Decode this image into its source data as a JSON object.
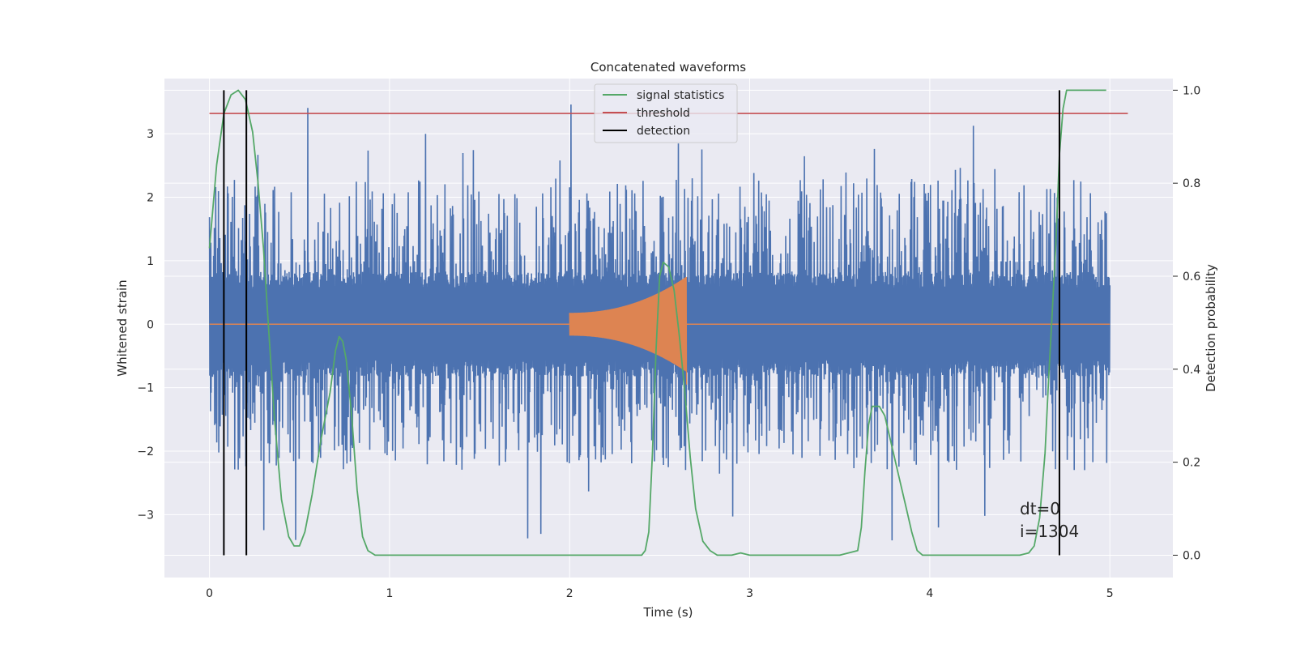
{
  "chart_data": {
    "type": "line",
    "title": "Concatenated waveforms",
    "xlabel": "Time (s)",
    "ylabel": "Whitened strain",
    "ylabel_right": "Detection probability",
    "xlim": [
      -0.25,
      5.35
    ],
    "ylim": [
      -3.99,
      3.87
    ],
    "ylim_right": [
      -0.048,
      1.025
    ],
    "x_ticks": [
      0,
      1,
      2,
      3,
      4,
      5
    ],
    "y_ticks": [
      -3,
      -2,
      -1,
      0,
      1,
      2,
      3
    ],
    "y_ticks_right": [
      0.0,
      0.2,
      0.4,
      0.6,
      0.8,
      1.0
    ],
    "grid": true,
    "legend_position": "top-center",
    "legend": [
      {
        "name": "signal statistics",
        "color": "#55a868"
      },
      {
        "name": "threshold",
        "color": "#c44e52"
      },
      {
        "name": "detection",
        "color": "#000000"
      }
    ],
    "colors": {
      "noise": "#4c72b0",
      "injection": "#dd8452",
      "signal_statistics": "#55a868",
      "threshold": "#c44e52",
      "detection": "#000000",
      "axes_bg": "#eaeaf2",
      "grid": "#ffffff"
    },
    "noise": {
      "x_range": [
        0,
        5
      ],
      "band": 0.75,
      "typical_peak": 2.3,
      "max_peak": 3.55,
      "min_trough": -3.6
    },
    "injection": {
      "x_start": 2.0,
      "x_end": 2.65,
      "start_amplitude": 0.18,
      "peak_amplitude": 0.75,
      "end_amplitude": -0.95
    },
    "signal_statistics": {
      "x": [
        0.0,
        0.04,
        0.08,
        0.12,
        0.16,
        0.2,
        0.24,
        0.27,
        0.3,
        0.33,
        0.36,
        0.4,
        0.44,
        0.47,
        0.5,
        0.53,
        0.57,
        0.62,
        0.67,
        0.7,
        0.72,
        0.74,
        0.76,
        0.79,
        0.82,
        0.85,
        0.88,
        0.92,
        1.0,
        1.5,
        2.0,
        2.4,
        2.42,
        2.44,
        2.46,
        2.48,
        2.5,
        2.52,
        2.55,
        2.58,
        2.61,
        2.64,
        2.67,
        2.7,
        2.74,
        2.78,
        2.82,
        2.9,
        2.95,
        3.0,
        3.1,
        3.5,
        3.6,
        3.62,
        3.64,
        3.66,
        3.68,
        3.7,
        3.72,
        3.75,
        3.78,
        3.81,
        3.84,
        3.87,
        3.9,
        3.93,
        3.96,
        4.0,
        4.4,
        4.5,
        4.55,
        4.58,
        4.61,
        4.64,
        4.66,
        4.68,
        4.7,
        4.72,
        4.74,
        4.76,
        4.8,
        4.9,
        4.98
      ],
      "y": [
        0.66,
        0.84,
        0.95,
        0.99,
        1.0,
        0.98,
        0.91,
        0.8,
        0.66,
        0.48,
        0.3,
        0.12,
        0.04,
        0.02,
        0.02,
        0.05,
        0.13,
        0.25,
        0.35,
        0.44,
        0.47,
        0.46,
        0.42,
        0.3,
        0.14,
        0.04,
        0.01,
        0.0,
        0.0,
        0.0,
        0.0,
        0.0,
        0.01,
        0.05,
        0.22,
        0.44,
        0.6,
        0.63,
        0.62,
        0.57,
        0.47,
        0.35,
        0.21,
        0.1,
        0.03,
        0.01,
        0.0,
        0.0,
        0.005,
        0.0,
        0.0,
        0.0,
        0.01,
        0.06,
        0.18,
        0.28,
        0.32,
        0.32,
        0.32,
        0.3,
        0.25,
        0.2,
        0.15,
        0.1,
        0.05,
        0.01,
        0.0,
        0.0,
        0.0,
        0.0,
        0.005,
        0.02,
        0.08,
        0.22,
        0.38,
        0.52,
        0.67,
        0.86,
        0.96,
        1.0,
        1.0,
        1.0,
        1.0
      ]
    },
    "threshold": {
      "value": 0.95,
      "x_range": [
        0,
        5.1
      ]
    },
    "detections": [
      0.08,
      0.205,
      4.72
    ],
    "annotation": [
      "dt=0",
      "i=1304"
    ],
    "annotation_pos": {
      "x": 4.5,
      "y": -3.35
    }
  }
}
